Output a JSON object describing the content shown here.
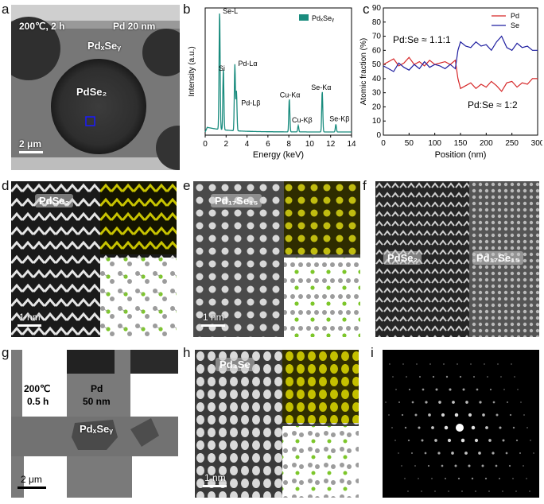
{
  "panels": {
    "a": {
      "label": "a",
      "condition": "200℃, 2 h",
      "thickness": "Pd 20 nm",
      "phase_top": "PdₓSeᵧ",
      "phase_center": "PdSe₂",
      "scalebar": "2 μm"
    },
    "b": {
      "label": "b"
    },
    "c": {
      "label": "c"
    },
    "d": {
      "label": "d",
      "phase": "PdSe₂",
      "scalebar": "1 nm"
    },
    "e": {
      "label": "e",
      "phase": "Pd₁₇Se₁₅",
      "scalebar": "1 nm"
    },
    "f": {
      "label": "f",
      "phase_left": "PdSe₂",
      "phase_right": "Pd₁₇Se₁₅"
    },
    "g": {
      "label": "g",
      "condition_line1": "200℃",
      "condition_line2": "0.5 h",
      "thickness_line1": "Pd",
      "thickness_line2": "50 nm",
      "phase": "PdₓSeᵧ",
      "scalebar": "2 μm"
    },
    "h": {
      "label": "h",
      "phase": "Pd₄Se",
      "scalebar": "1 nm"
    },
    "i": {
      "label": "i"
    }
  },
  "colors": {
    "eds_teal": "#1a8c7e",
    "pd_line": "#d62728",
    "se_line": "#1f1fa0",
    "yellow": "#c8c400"
  },
  "chart_data": [
    {
      "type": "line",
      "panel": "b",
      "title": "",
      "xlabel": "Energy (keV)",
      "ylabel": "Intensity (a.u.)",
      "xlim": [
        0,
        14
      ],
      "xticks": [
        0,
        2,
        4,
        6,
        8,
        10,
        12,
        14
      ],
      "legend": "PdₓSeᵧ",
      "peaks": [
        {
          "energy": 1.38,
          "height": 0.93,
          "label": "Se-L"
        },
        {
          "energy": 1.74,
          "height": 0.48,
          "label": "Si"
        },
        {
          "energy": 2.84,
          "height": 0.52,
          "label": "Pd-Lα"
        },
        {
          "energy": 2.99,
          "height": 0.31,
          "label": "Pd-Lβ"
        },
        {
          "energy": 8.05,
          "height": 0.26,
          "label": "Cu-Kα"
        },
        {
          "energy": 8.9,
          "height": 0.05,
          "label": "Cu-Kβ"
        },
        {
          "energy": 11.2,
          "height": 0.32,
          "label": "Se-Kα"
        },
        {
          "energy": 12.5,
          "height": 0.06,
          "label": "Se-Kβ"
        }
      ]
    },
    {
      "type": "line",
      "panel": "c",
      "title": "",
      "xlabel": "Position (nm)",
      "ylabel": "Atomic fraction (%)",
      "xlim": [
        0,
        300
      ],
      "ylim": [
        0,
        90
      ],
      "xticks": [
        0,
        50,
        100,
        150,
        200,
        250,
        300
      ],
      "yticks": [
        0,
        10,
        20,
        30,
        40,
        50,
        60,
        70,
        80,
        90
      ],
      "annotations": [
        "Pd:Se ≈ 1.1:1",
        "Pd:Se ≈ 1:2"
      ],
      "series": [
        {
          "name": "Pd",
          "x": [
            0,
            10,
            20,
            30,
            40,
            50,
            60,
            70,
            80,
            90,
            100,
            110,
            120,
            130,
            140,
            145,
            150,
            160,
            170,
            180,
            190,
            200,
            210,
            220,
            230,
            240,
            250,
            260,
            270,
            280,
            290,
            300
          ],
          "values": [
            50,
            52,
            54,
            49,
            51,
            55,
            50,
            52,
            49,
            53,
            50,
            51,
            52,
            50,
            53,
            40,
            33,
            35,
            37,
            33,
            36,
            34,
            38,
            35,
            31,
            37,
            38,
            34,
            37,
            36,
            40,
            40
          ]
        },
        {
          "name": "Se",
          "x": [
            0,
            10,
            20,
            30,
            40,
            50,
            60,
            70,
            80,
            90,
            100,
            110,
            120,
            130,
            140,
            145,
            150,
            160,
            170,
            180,
            190,
            200,
            210,
            220,
            230,
            240,
            250,
            260,
            270,
            280,
            290,
            300
          ],
          "values": [
            49,
            47,
            45,
            51,
            48,
            46,
            50,
            47,
            52,
            48,
            50,
            49,
            47,
            50,
            47,
            60,
            66,
            63,
            62,
            66,
            63,
            64,
            60,
            66,
            70,
            62,
            60,
            65,
            62,
            63,
            60,
            60
          ]
        }
      ]
    }
  ],
  "labels_b": {
    "legend": "PdₓSeᵧ"
  },
  "labels_c": {
    "legend_pd": "Pd",
    "legend_se": "Se"
  }
}
